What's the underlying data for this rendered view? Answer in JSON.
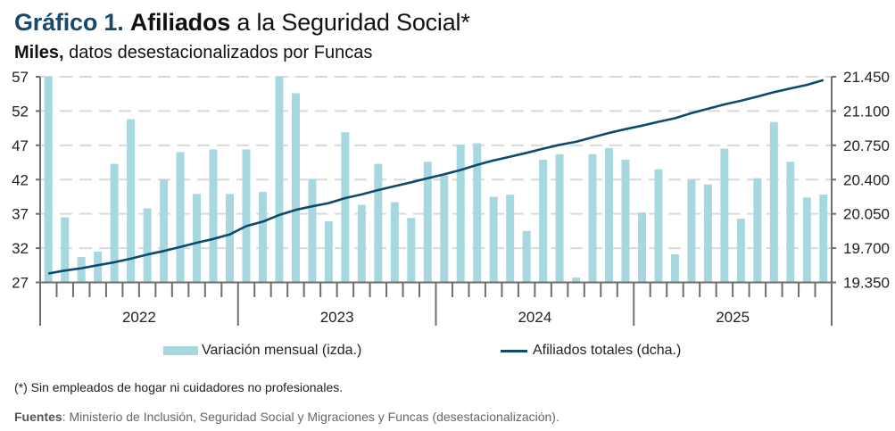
{
  "header": {
    "chart_number": "Gráfico 1.",
    "title_bold": "Afiliados",
    "title_rest": " a la Seguridad Social*",
    "subtitle_bold": "Miles,",
    "subtitle_rest": " datos desestacionalizados por Funcas"
  },
  "legend": {
    "bar_label": "Variación mensual (izda.)",
    "line_label": "Afiliados totales (dcha.)"
  },
  "footnote": "(*) Sin empleados de hogar ni cuidadores no profesionales.",
  "sources": {
    "label": "Fuentes",
    "text": ": Ministerio de Inclusión, Seguridad Social y Migraciones y Funcas (desestacionalización)."
  },
  "colors": {
    "bars": "#a8d8df",
    "line": "#0d4a6e",
    "title_accent": "#15496e",
    "grid": "#d9d9d9",
    "axis": "#6e6e6e"
  },
  "chart_data": {
    "type": "bar+line",
    "title": "Gráfico 1. Afiliados a la Seguridad Social*",
    "subtitle": "Miles, datos desestacionalizados por Funcas",
    "x_unit": "month",
    "x_start": "2022-01",
    "x_end": "2025-12",
    "year_labels": [
      "2022",
      "2023",
      "2024",
      "2025"
    ],
    "left_axis": {
      "label": "Variación mensual (izda.)",
      "ylim": [
        27,
        57
      ],
      "ticks": [
        "57",
        "52",
        "47",
        "42",
        "37",
        "32",
        "27"
      ],
      "tick_values": [
        57,
        52,
        47,
        42,
        37,
        32,
        27
      ]
    },
    "right_axis": {
      "label": "Afiliados totales (dcha.)",
      "ylim": [
        19350,
        21450
      ],
      "ticks": [
        "21.450",
        "21.100",
        "20.750",
        "20.400",
        "20.050",
        "19.700",
        "19.350"
      ],
      "tick_values": [
        21450,
        21100,
        20750,
        20400,
        20050,
        19700,
        19350
      ]
    },
    "grid": true,
    "legend_position": "bottom",
    "series": [
      {
        "name": "Variación mensual (izda.)",
        "type": "bar",
        "axis": "left",
        "values": [
          57.5,
          36.5,
          30.7,
          31.5,
          44.3,
          50.8,
          37.8,
          42.0,
          46.0,
          39.9,
          46.4,
          39.9,
          46.4,
          40.2,
          58.0,
          54.6,
          42.1,
          35.9,
          48.9,
          38.3,
          44.3,
          38.7,
          36.4,
          44.6,
          42.6,
          47.1,
          47.3,
          39.5,
          39.8,
          34.5,
          44.9,
          45.7,
          27.7,
          45.7,
          46.6,
          44.9,
          37.2,
          43.5,
          31.1,
          42.0,
          41.3,
          46.5,
          36.3,
          42.2,
          50.4,
          44.6,
          39.4,
          39.8
        ]
      },
      {
        "name": "Afiliados totales (dcha.)",
        "type": "line",
        "axis": "right",
        "values": [
          19441,
          19471,
          19495,
          19526,
          19556,
          19592,
          19635,
          19671,
          19713,
          19755,
          19794,
          19840,
          19925,
          19970,
          20039,
          20091,
          20127,
          20160,
          20211,
          20248,
          20293,
          20333,
          20372,
          20414,
          20453,
          20498,
          20550,
          20595,
          20634,
          20673,
          20716,
          20755,
          20786,
          20831,
          20876,
          20915,
          20951,
          20990,
          21026,
          21078,
          21123,
          21168,
          21205,
          21247,
          21292,
          21331,
          21367,
          21416
        ]
      }
    ]
  }
}
